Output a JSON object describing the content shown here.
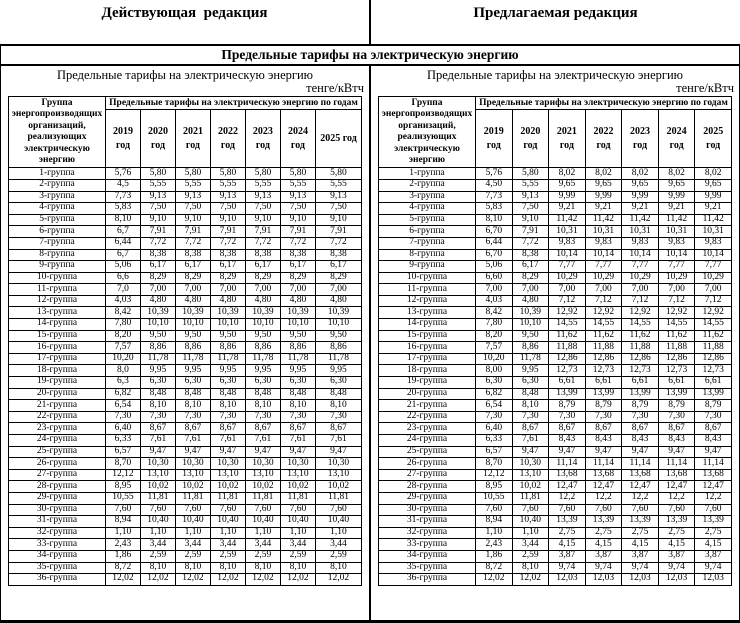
{
  "header": {
    "left": "Действующая  редакция",
    "right": "Предлагаемая редакция",
    "merged_title": "Предельные тарифы на электрическую энергию"
  },
  "left_panel": {
    "subtitle": "Предельные тарифы на электрическую энергию",
    "unit": "тенге/кВтч",
    "table": {
      "group_header": "Группа энергопроизводящих организаций, реализующих электрическую энергию",
      "years_header": "Предельные тарифы на электрическую энергию по годам",
      "year_columns": [
        "2019\nгод",
        "2020\nгод",
        "2021\nгод",
        "2022\nгод",
        "2023\nгод",
        "2024\nгод",
        "2025 год"
      ],
      "rows": [
        {
          "group": "1-группа",
          "values": [
            "5,76",
            "5,80",
            "5,80",
            "5,80",
            "5,80",
            "5,80",
            "5,80"
          ]
        },
        {
          "group": "2-группа",
          "values": [
            "4,5",
            "5,55",
            "5,55",
            "5,55",
            "5,55",
            "5,55",
            "5,55"
          ]
        },
        {
          "group": "3-группа",
          "values": [
            "7,73",
            "9,13",
            "9,13",
            "9,13",
            "9,13",
            "9,13",
            "9,13"
          ]
        },
        {
          "group": "4-группа",
          "values": [
            "5,83",
            "7,50",
            "7,50",
            "7,50",
            "7,50",
            "7,50",
            "7,50"
          ]
        },
        {
          "group": "5-группа",
          "values": [
            "8,10",
            "9,10",
            "9,10",
            "9,10",
            "9,10",
            "9,10",
            "9,10"
          ]
        },
        {
          "group": "6-группа",
          "values": [
            "6,7",
            "7,91",
            "7,91",
            "7,91",
            "7,91",
            "7,91",
            "7,91"
          ]
        },
        {
          "group": "7-группа",
          "values": [
            "6,44",
            "7,72",
            "7,72",
            "7,72",
            "7,72",
            "7,72",
            "7,72"
          ]
        },
        {
          "group": "8-группа",
          "values": [
            "6,7",
            "8,38",
            "8,38",
            "8,38",
            "8,38",
            "8,38",
            "8,38"
          ]
        },
        {
          "group": "9-группа",
          "values": [
            "5,06",
            "6,17",
            "6,17",
            "6,17",
            "6,17",
            "6,17",
            "6,17"
          ]
        },
        {
          "group": "10-группа",
          "values": [
            "6,6",
            "8,29",
            "8,29",
            "8,29",
            "8,29",
            "8,29",
            "8,29"
          ]
        },
        {
          "group": "11-группа",
          "values": [
            "7,0",
            "7,00",
            "7,00",
            "7,00",
            "7,00",
            "7,00",
            "7,00"
          ]
        },
        {
          "group": "12-группа",
          "values": [
            "4,03",
            "4,80",
            "4,80",
            "4,80",
            "4,80",
            "4,80",
            "4,80"
          ]
        },
        {
          "group": "13-группа",
          "values": [
            "8,42",
            "10,39",
            "10,39",
            "10,39",
            "10,39",
            "10,39",
            "10,39"
          ]
        },
        {
          "group": "14-группа",
          "values": [
            "7,80",
            "10,10",
            "10,10",
            "10,10",
            "10,10",
            "10,10",
            "10,10"
          ]
        },
        {
          "group": "15-группа",
          "values": [
            "8,20",
            "9,50",
            "9,50",
            "9,50",
            "9,50",
            "9,50",
            "9,50"
          ]
        },
        {
          "group": "16-группа",
          "values": [
            "7,57",
            "8,86",
            "8,86",
            "8,86",
            "8,86",
            "8,86",
            "8,86"
          ]
        },
        {
          "group": "17-группа",
          "values": [
            "10,20",
            "11,78",
            "11,78",
            "11,78",
            "11,78",
            "11,78",
            "11,78"
          ]
        },
        {
          "group": "18-группа",
          "values": [
            "8,0",
            "9,95",
            "9,95",
            "9,95",
            "9,95",
            "9,95",
            "9,95"
          ]
        },
        {
          "group": "19-группа",
          "values": [
            "6,3",
            "6,30",
            "6,30",
            "6,30",
            "6,30",
            "6,30",
            "6,30"
          ]
        },
        {
          "group": "20-группа",
          "values": [
            "6,82",
            "8,48",
            "8,48",
            "8,48",
            "8,48",
            "8,48",
            "8,48"
          ]
        },
        {
          "group": "21-группа",
          "values": [
            "6,54",
            "8,10",
            "8,10",
            "8,10",
            "8,10",
            "8,10",
            "8,10"
          ]
        },
        {
          "group": "22-группа",
          "values": [
            "7,30",
            "7,30",
            "7,30",
            "7,30",
            "7,30",
            "7,30",
            "7,30"
          ]
        },
        {
          "group": "23-группа",
          "values": [
            "6,40",
            "8,67",
            "8,67",
            "8,67",
            "8,67",
            "8,67",
            "8,67"
          ]
        },
        {
          "group": "24-группа",
          "values": [
            "6,33",
            "7,61",
            "7,61",
            "7,61",
            "7,61",
            "7,61",
            "7,61"
          ]
        },
        {
          "group": "25-группа",
          "values": [
            "6,57",
            "9,47",
            "9,47",
            "9,47",
            "9,47",
            "9,47",
            "9,47"
          ]
        },
        {
          "group": "26-группа",
          "values": [
            "8,70",
            "10,30",
            "10,30",
            "10,30",
            "10,30",
            "10,30",
            "10,30"
          ]
        },
        {
          "group": "27-группа",
          "values": [
            "12,12",
            "13,10",
            "13,10",
            "13,10",
            "13,10",
            "13,10",
            "13,10"
          ]
        },
        {
          "group": "28-группа",
          "values": [
            "8,95",
            "10,02",
            "10,02",
            "10,02",
            "10,02",
            "10,02",
            "10,02"
          ]
        },
        {
          "group": "29-группа",
          "values": [
            "10,55",
            "11,81",
            "11,81",
            "11,81",
            "11,81",
            "11,81",
            "11,81"
          ]
        },
        {
          "group": "30-группа",
          "values": [
            "7,60",
            "7,60",
            "7,60",
            "7,60",
            "7,60",
            "7,60",
            "7,60"
          ]
        },
        {
          "group": "31-группа",
          "values": [
            "8,94",
            "10,40",
            "10,40",
            "10,40",
            "10,40",
            "10,40",
            "10,40"
          ]
        },
        {
          "group": "32-группа",
          "values": [
            "1,10",
            "1,10",
            "1,10",
            "1,10",
            "1,10",
            "1,10",
            "1,10"
          ]
        },
        {
          "group": "33-группа",
          "values": [
            "2,43",
            "3,44",
            "3,44",
            "3,44",
            "3,44",
            "3,44",
            "3,44"
          ]
        },
        {
          "group": "34-группа",
          "values": [
            "1,86",
            "2,59",
            "2,59",
            "2,59",
            "2,59",
            "2,59",
            "2,59"
          ]
        },
        {
          "group": "35-группа",
          "values": [
            "8,72",
            "8,10",
            "8,10",
            "8,10",
            "8,10",
            "8,10",
            "8,10"
          ]
        },
        {
          "group": "36-группа",
          "values": [
            "12,02",
            "12,02",
            "12,02",
            "12,02",
            "12,02",
            "12,02",
            "12,02"
          ]
        }
      ]
    }
  },
  "right_panel": {
    "subtitle": "Предельные тарифы на электрическую энергию",
    "unit": "тенге/кВтч",
    "table": {
      "group_header": "Группа энергопроизводящих организаций, реализующих электрическую энергию",
      "years_header": "Предельные тарифы на электрическую энергию по годам",
      "year_columns": [
        "2019\nгод",
        "2020\nгод",
        "2021\nгод",
        "2022\nгод",
        "2023\nгод",
        "2024\nгод",
        "2025\nгод"
      ],
      "rows": [
        {
          "group": "1-группа",
          "values": [
            "5,76",
            "5,80",
            "8,02",
            "8,02",
            "8,02",
            "8,02",
            "8,02"
          ]
        },
        {
          "group": "2-группа",
          "values": [
            "4,50",
            "5,55",
            "9,65",
            "9,65",
            "9,65",
            "9,65",
            "9,65"
          ]
        },
        {
          "group": "3-группа",
          "values": [
            "7,73",
            "9,13",
            "9,99",
            "9,99",
            "9,99",
            "9,99",
            "9,99"
          ]
        },
        {
          "group": "4-группа",
          "values": [
            "5,83",
            "7,50",
            "9,21",
            "9,21",
            "9,21",
            "9,21",
            "9,21"
          ]
        },
        {
          "group": "5-группа",
          "values": [
            "8,10",
            "9,10",
            "11,42",
            "11,42",
            "11,42",
            "11,42",
            "11,42"
          ]
        },
        {
          "group": "6-группа",
          "values": [
            "6,70",
            "7,91",
            "10,31",
            "10,31",
            "10,31",
            "10,31",
            "10,31"
          ]
        },
        {
          "group": "7-группа",
          "values": [
            "6,44",
            "7,72",
            "9,83",
            "9,83",
            "9,83",
            "9,83",
            "9,83"
          ]
        },
        {
          "group": "8-группа",
          "values": [
            "6,70",
            "8,38",
            "10,14",
            "10,14",
            "10,14",
            "10,14",
            "10,14"
          ]
        },
        {
          "group": "9-группа",
          "values": [
            "5,06",
            "6,17",
            "7,77",
            "7,77",
            "7,77",
            "7,77",
            "7,77"
          ]
        },
        {
          "group": "10-группа",
          "values": [
            "6,60",
            "8,29",
            "10,29",
            "10,29",
            "10,29",
            "10,29",
            "10,29"
          ]
        },
        {
          "group": "11-группа",
          "values": [
            "7,00",
            "7,00",
            "7,00",
            "7,00",
            "7,00",
            "7,00",
            "7,00"
          ]
        },
        {
          "group": "12-группа",
          "values": [
            "4,03",
            "4,80",
            "7,12",
            "7,12",
            "7,12",
            "7,12",
            "7,12"
          ]
        },
        {
          "group": "13-группа",
          "values": [
            "8,42",
            "10,39",
            "12,92",
            "12,92",
            "12,92",
            "12,92",
            "12,92"
          ]
        },
        {
          "group": "14-группа",
          "values": [
            "7,80",
            "10,10",
            "14,55",
            "14,55",
            "14,55",
            "14,55",
            "14,55"
          ]
        },
        {
          "group": "15-группа",
          "values": [
            "8,20",
            "9,50",
            "11,62",
            "11,62",
            "11,62",
            "11,62",
            "11,62"
          ]
        },
        {
          "group": "16-группа",
          "values": [
            "7,57",
            "8,86",
            "11,88",
            "11,88",
            "11,88",
            "11,88",
            "11,88"
          ]
        },
        {
          "group": "17-группа",
          "values": [
            "10,20",
            "11,78",
            "12,86",
            "12,86",
            "12,86",
            "12,86",
            "12,86"
          ]
        },
        {
          "group": "18-группа",
          "values": [
            "8,00",
            "9,95",
            "12,73",
            "12,73",
            "12,73",
            "12,73",
            "12,73"
          ]
        },
        {
          "group": "19-группа",
          "values": [
            "6,30",
            "6,30",
            "6,61",
            "6,61",
            "6,61",
            "6,61",
            "6,61"
          ]
        },
        {
          "group": "20-группа",
          "values": [
            "6,82",
            "8,48",
            "13,99",
            "13,99",
            "13,99",
            "13,99",
            "13,99"
          ]
        },
        {
          "group": "21-группа",
          "values": [
            "6,54",
            "8,10",
            "8,79",
            "8,79",
            "8,79",
            "8,79",
            "8,79"
          ]
        },
        {
          "group": "22-группа",
          "values": [
            "7,30",
            "7,30",
            "7,30",
            "7,30",
            "7,30",
            "7,30",
            "7,30"
          ]
        },
        {
          "group": "23-группа",
          "values": [
            "6,40",
            "8,67",
            "8,67",
            "8,67",
            "8,67",
            "8,67",
            "8,67"
          ]
        },
        {
          "group": "24-группа",
          "values": [
            "6,33",
            "7,61",
            "8,43",
            "8,43",
            "8,43",
            "8,43",
            "8,43"
          ]
        },
        {
          "group": "25-группа",
          "values": [
            "6,57",
            "9,47",
            "9,47",
            "9,47",
            "9,47",
            "9,47",
            "9,47"
          ]
        },
        {
          "group": "26-группа",
          "values": [
            "8,70",
            "10,30",
            "11,14",
            "11,14",
            "11,14",
            "11,14",
            "11,14"
          ]
        },
        {
          "group": "27-группа",
          "values": [
            "12,12",
            "13,10",
            "13,68",
            "13,68",
            "13,68",
            "13,68",
            "13,68"
          ]
        },
        {
          "group": "28-группа",
          "values": [
            "8,95",
            "10,02",
            "12,47",
            "12,47",
            "12,47",
            "12,47",
            "12,47"
          ]
        },
        {
          "group": "29-группа",
          "values": [
            "10,55",
            "11,81",
            "12,2",
            "12,2",
            "12,2",
            "12,2",
            "12,2"
          ]
        },
        {
          "group": "30-группа",
          "values": [
            "7,60",
            "7,60",
            "7,60",
            "7,60",
            "7,60",
            "7,60",
            "7,60"
          ]
        },
        {
          "group": "31-группа",
          "values": [
            "8,94",
            "10,40",
            "13,39",
            "13,39",
            "13,39",
            "13,39",
            "13,39"
          ]
        },
        {
          "group": "32-группа",
          "values": [
            "1,10",
            "1,10",
            "2,75",
            "2,75",
            "2,75",
            "2,75",
            "2,75"
          ]
        },
        {
          "group": "33-группа",
          "values": [
            "2,43",
            "3,44",
            "4,15",
            "4,15",
            "4,15",
            "4,15",
            "4,15"
          ]
        },
        {
          "group": "34-группа",
          "values": [
            "1,86",
            "2,59",
            "3,87",
            "3,87",
            "3,87",
            "3,87",
            "3,87"
          ]
        },
        {
          "group": "35-группа",
          "values": [
            "8,72",
            "8,10",
            "9,74",
            "9,74",
            "9,74",
            "9,74",
            "9,74"
          ]
        },
        {
          "group": "36-группа",
          "values": [
            "12,02",
            "12,02",
            "12,03",
            "12,03",
            "12,03",
            "12,03",
            "12,03"
          ]
        }
      ]
    }
  }
}
